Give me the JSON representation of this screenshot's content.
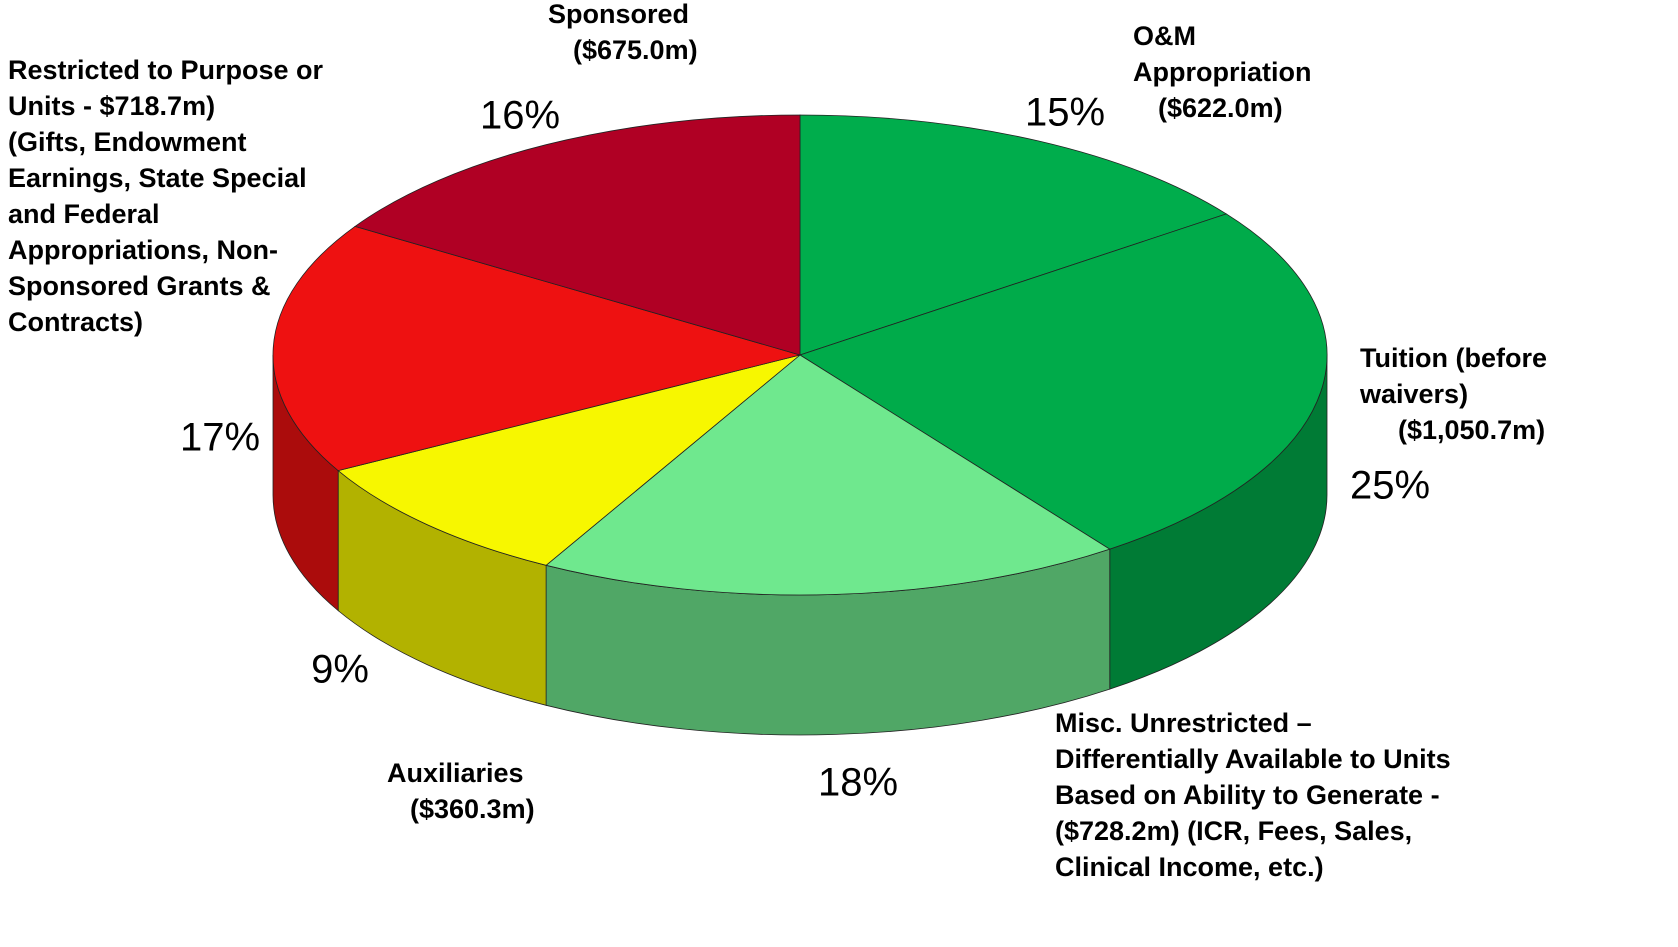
{
  "chart_data": {
    "type": "pie",
    "categories": [
      [
        "O&M",
        "Appropriation",
        "($622.0m)"
      ],
      [
        "Tuition (before",
        "waivers)",
        "($1,050.7m)"
      ],
      [
        "Misc. Unrestricted –",
        "Differentially Available to Units",
        "Based on Ability to Generate  -",
        "($728.2m) (ICR, Fees, Sales,",
        "Clinical Income, etc.)"
      ],
      [
        "Auxiliaries",
        "($360.3m)"
      ],
      [
        "Restricted to Purpose or",
        "Units - $718.7m)",
        "(Gifts, Endowment",
        "Earnings, State Special",
        "and Federal",
        "Appropriations, Non-",
        "Sponsored Grants &",
        "Contracts)"
      ],
      [
        "Sponsored",
        "($675.0m)"
      ]
    ],
    "values": [
      15,
      25,
      18,
      9,
      17,
      16
    ],
    "value_labels": [
      "15%",
      "25%",
      "18%",
      "9%",
      "17%",
      "16%"
    ],
    "colors": [
      "#00ad4c",
      "#00ab4a",
      "#6fe88e",
      "#f7f700",
      "#ee1111",
      "#b00024"
    ]
  }
}
